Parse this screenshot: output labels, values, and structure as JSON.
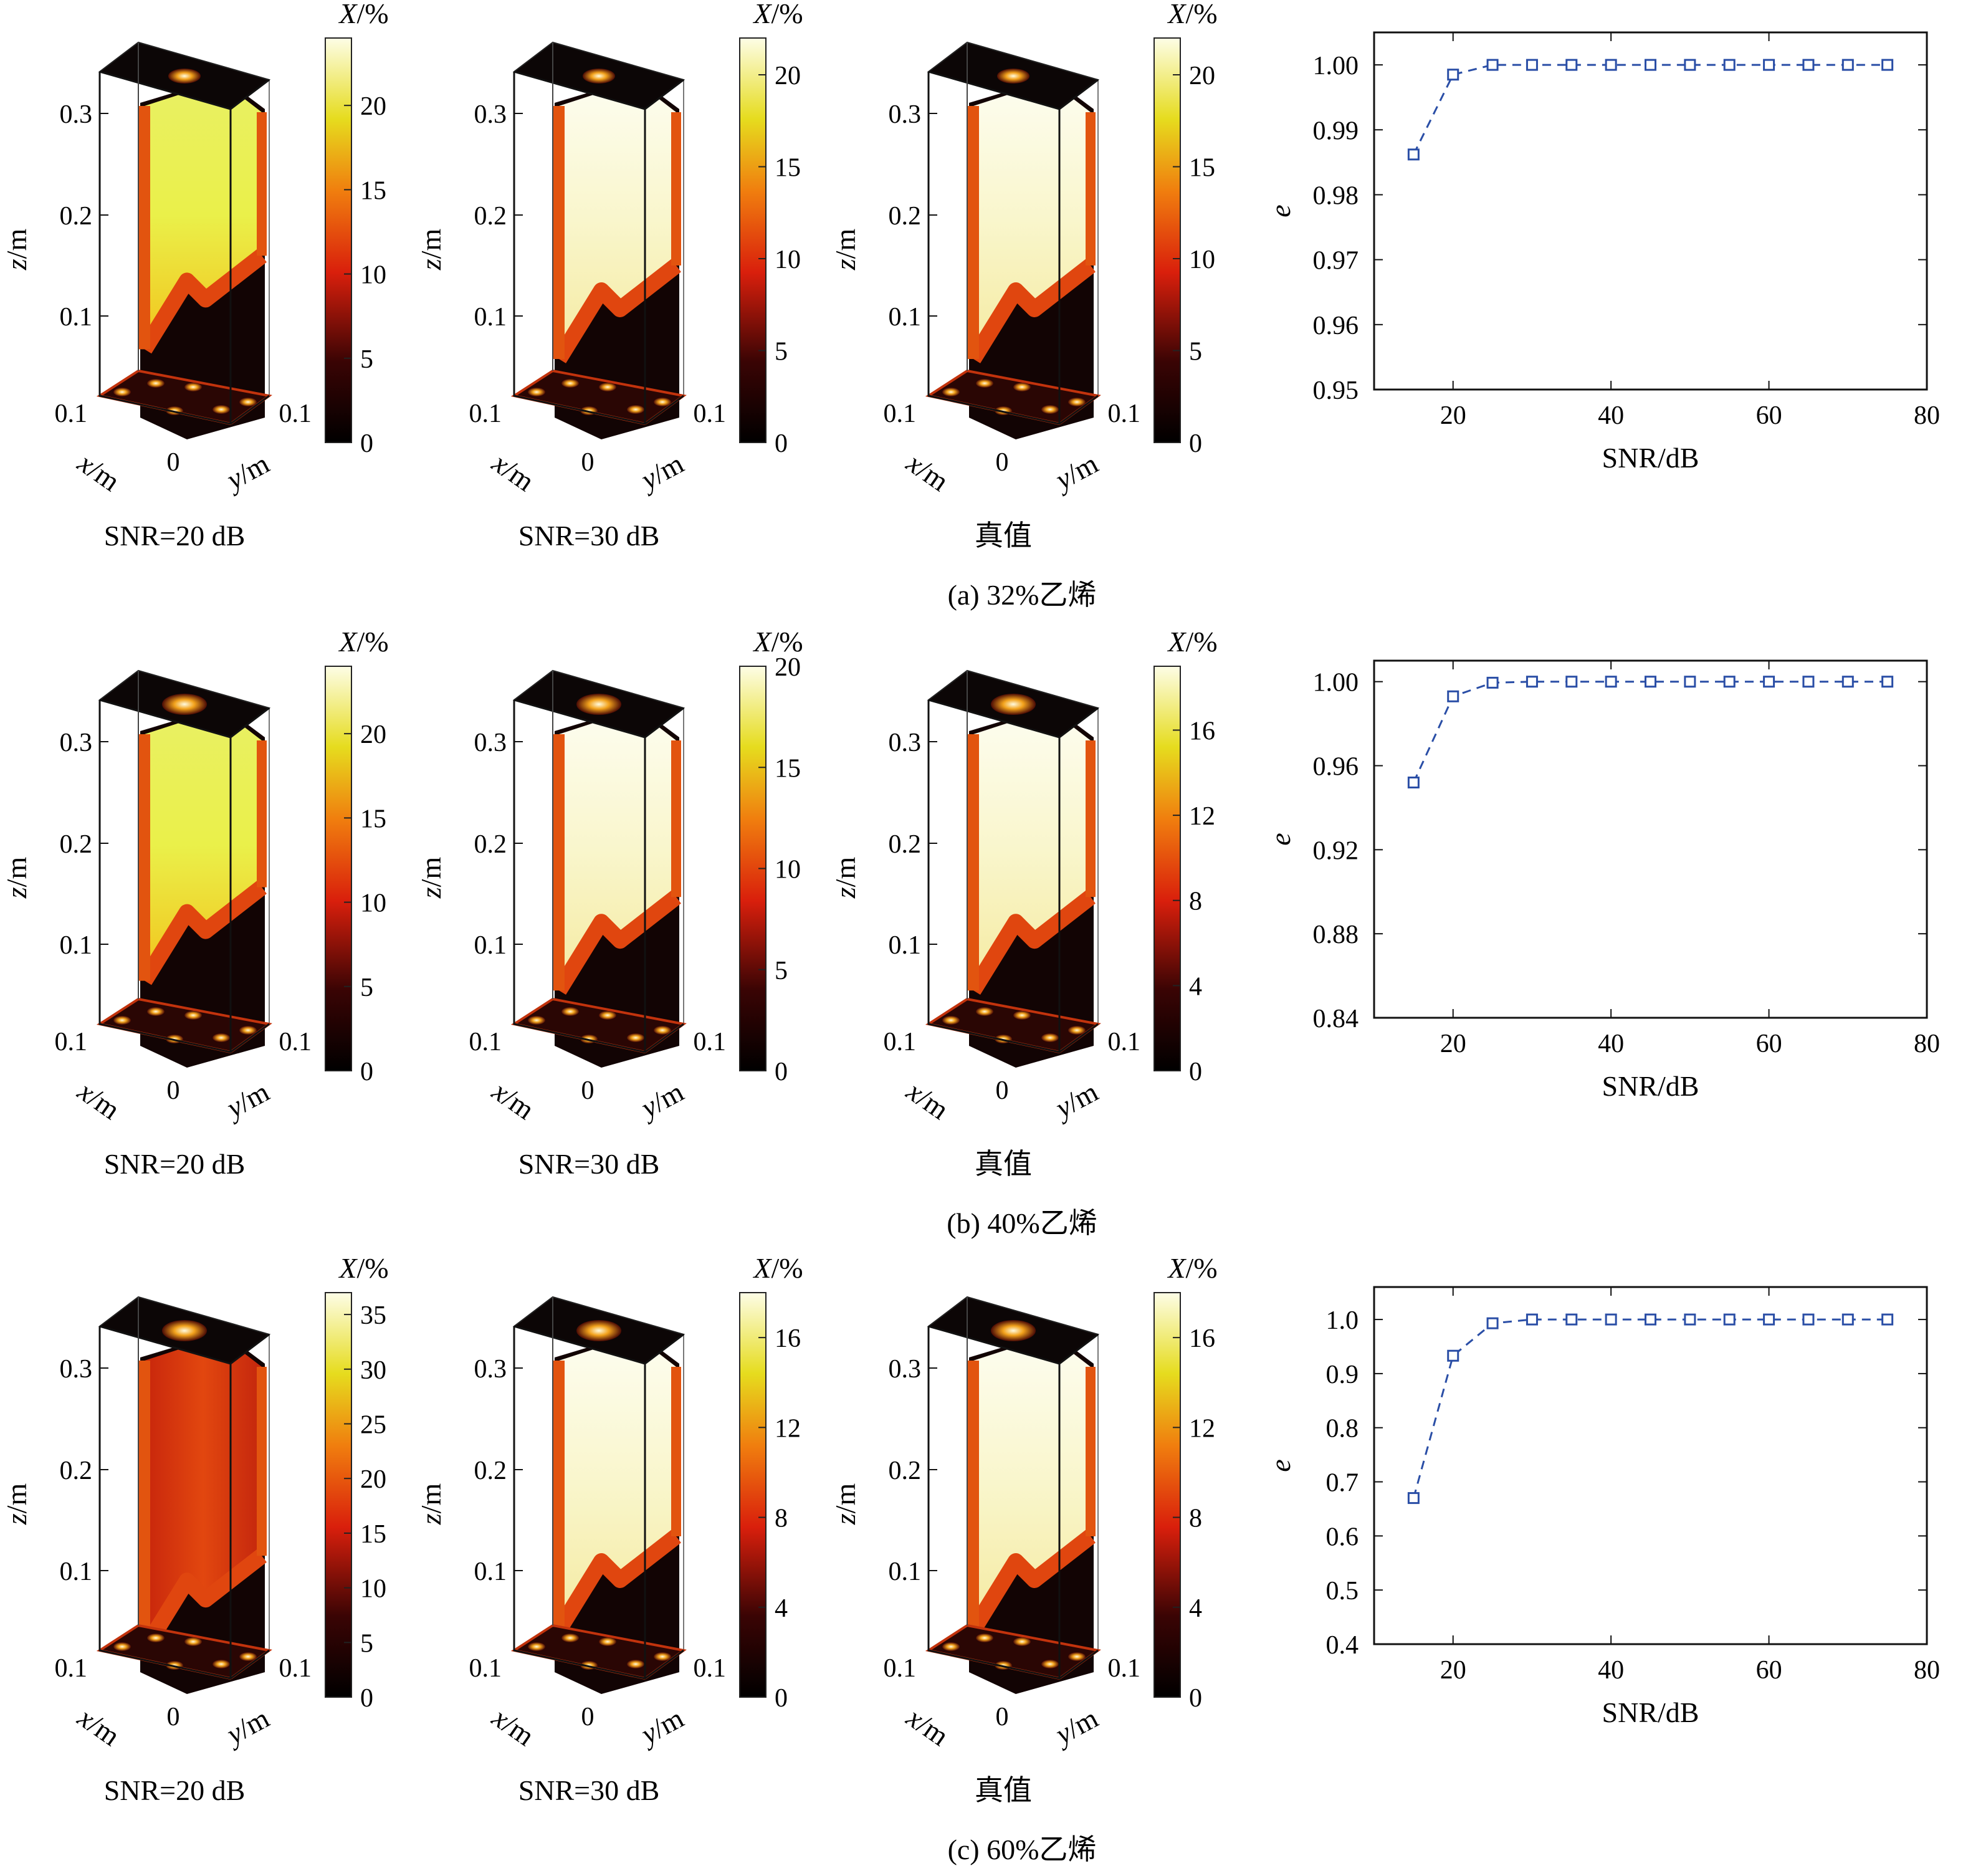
{
  "figure": {
    "rows": [
      {
        "caption": "(a) 32%乙烯",
        "panels": [
          {
            "title": "SNR=20 dB",
            "colorbar": {
              "label": "X/%",
              "ticks": [
                "0",
                "5",
                "10",
                "15",
                "20"
              ],
              "max": 24
            }
          },
          {
            "title": "SNR=30 dB",
            "colorbar": {
              "label": "X/%",
              "ticks": [
                "0",
                "5",
                "10",
                "15",
                "20"
              ],
              "max": 22
            }
          },
          {
            "title": "真值",
            "colorbar": {
              "label": "X/%",
              "ticks": [
                "0",
                "5",
                "10",
                "15",
                "20"
              ],
              "max": 22
            }
          }
        ]
      },
      {
        "caption": "(b) 40%乙烯",
        "panels": [
          {
            "title": "SNR=20 dB",
            "colorbar": {
              "label": "X/%",
              "ticks": [
                "0",
                "5",
                "10",
                "15",
                "20"
              ],
              "max": 24
            }
          },
          {
            "title": "SNR=30 dB",
            "colorbar": {
              "label": "X/%",
              "ticks": [
                "0",
                "5",
                "10",
                "15",
                "20"
              ],
              "max": 20
            }
          },
          {
            "title": "真值",
            "colorbar": {
              "label": "X/%",
              "ticks": [
                "0",
                "4",
                "8",
                "12",
                "16"
              ],
              "max": 19
            }
          }
        ]
      },
      {
        "caption": "(c) 60%乙烯",
        "panels": [
          {
            "title": "SNR=20 dB",
            "colorbar": {
              "label": "X/%",
              "ticks": [
                "0",
                "5",
                "10",
                "15",
                "20",
                "25",
                "30",
                "35"
              ],
              "max": 37
            }
          },
          {
            "title": "SNR=30 dB",
            "colorbar": {
              "label": "X/%",
              "ticks": [
                "0",
                "4",
                "8",
                "12",
                "16"
              ],
              "max": 18
            }
          },
          {
            "title": "真值",
            "colorbar": {
              "label": "X/%",
              "ticks": [
                "0",
                "4",
                "8",
                "12",
                "16"
              ],
              "max": 18
            }
          }
        ]
      }
    ],
    "volume_axes": {
      "z_label": "z/m",
      "x_label": "x/m",
      "y_label": "y/m",
      "z_ticks": [
        "0.1",
        "0.2",
        "0.3"
      ],
      "x_tick": "0.1",
      "origin_tick": "0",
      "y_tick": "0.1"
    }
  },
  "chart_data": [
    {
      "type": "line",
      "title": "",
      "xlabel": "SNR/dB",
      "ylabel": "e",
      "xlim": [
        10,
        80
      ],
      "xticks": [
        20,
        40,
        60,
        80
      ],
      "ylim": [
        0.95,
        1.005
      ],
      "yticks": [
        "0.95",
        "0.96",
        "0.97",
        "0.98",
        "0.99",
        "1.00"
      ],
      "x": [
        15,
        20,
        25,
        30,
        35,
        40,
        45,
        50,
        55,
        60,
        65,
        70,
        75
      ],
      "series": [
        {
          "values": [
            0.9862,
            0.9985,
            1.0,
            1.0,
            1.0,
            1.0,
            1.0,
            1.0,
            1.0,
            1.0,
            1.0,
            1.0,
            1.0
          ]
        }
      ],
      "line_style": "dashed",
      "marker": "square",
      "color": "#2a4ea6",
      "grid": false
    },
    {
      "type": "line",
      "title": "",
      "xlabel": "SNR/dB",
      "ylabel": "e",
      "xlim": [
        10,
        80
      ],
      "xticks": [
        20,
        40,
        60,
        80
      ],
      "ylim": [
        0.84,
        1.01
      ],
      "yticks": [
        "0.84",
        "0.88",
        "0.92",
        "0.96",
        "1.00"
      ],
      "x": [
        15,
        20,
        25,
        30,
        35,
        40,
        45,
        50,
        55,
        60,
        65,
        70,
        75
      ],
      "series": [
        {
          "values": [
            0.952,
            0.993,
            0.9995,
            1.0,
            1.0,
            1.0,
            1.0,
            1.0,
            1.0,
            1.0,
            1.0,
            1.0,
            1.0
          ]
        }
      ],
      "line_style": "dashed",
      "marker": "square",
      "color": "#2a4ea6",
      "grid": false
    },
    {
      "type": "line",
      "title": "",
      "xlabel": "SNR/dB",
      "ylabel": "e",
      "xlim": [
        10,
        80
      ],
      "xticks": [
        20,
        40,
        60,
        80
      ],
      "ylim": [
        0.4,
        1.06
      ],
      "yticks": [
        "0.4",
        "0.5",
        "0.6",
        "0.7",
        "0.8",
        "0.9",
        "1.0"
      ],
      "x": [
        15,
        20,
        25,
        30,
        35,
        40,
        45,
        50,
        55,
        60,
        65,
        70,
        75
      ],
      "series": [
        {
          "values": [
            0.67,
            0.933,
            0.993,
            1.0,
            1.0,
            1.0,
            1.0,
            1.0,
            1.0,
            1.0,
            1.0,
            1.0,
            1.0
          ]
        }
      ],
      "line_style": "dashed",
      "marker": "square",
      "color": "#2a4ea6",
      "grid": false
    }
  ]
}
